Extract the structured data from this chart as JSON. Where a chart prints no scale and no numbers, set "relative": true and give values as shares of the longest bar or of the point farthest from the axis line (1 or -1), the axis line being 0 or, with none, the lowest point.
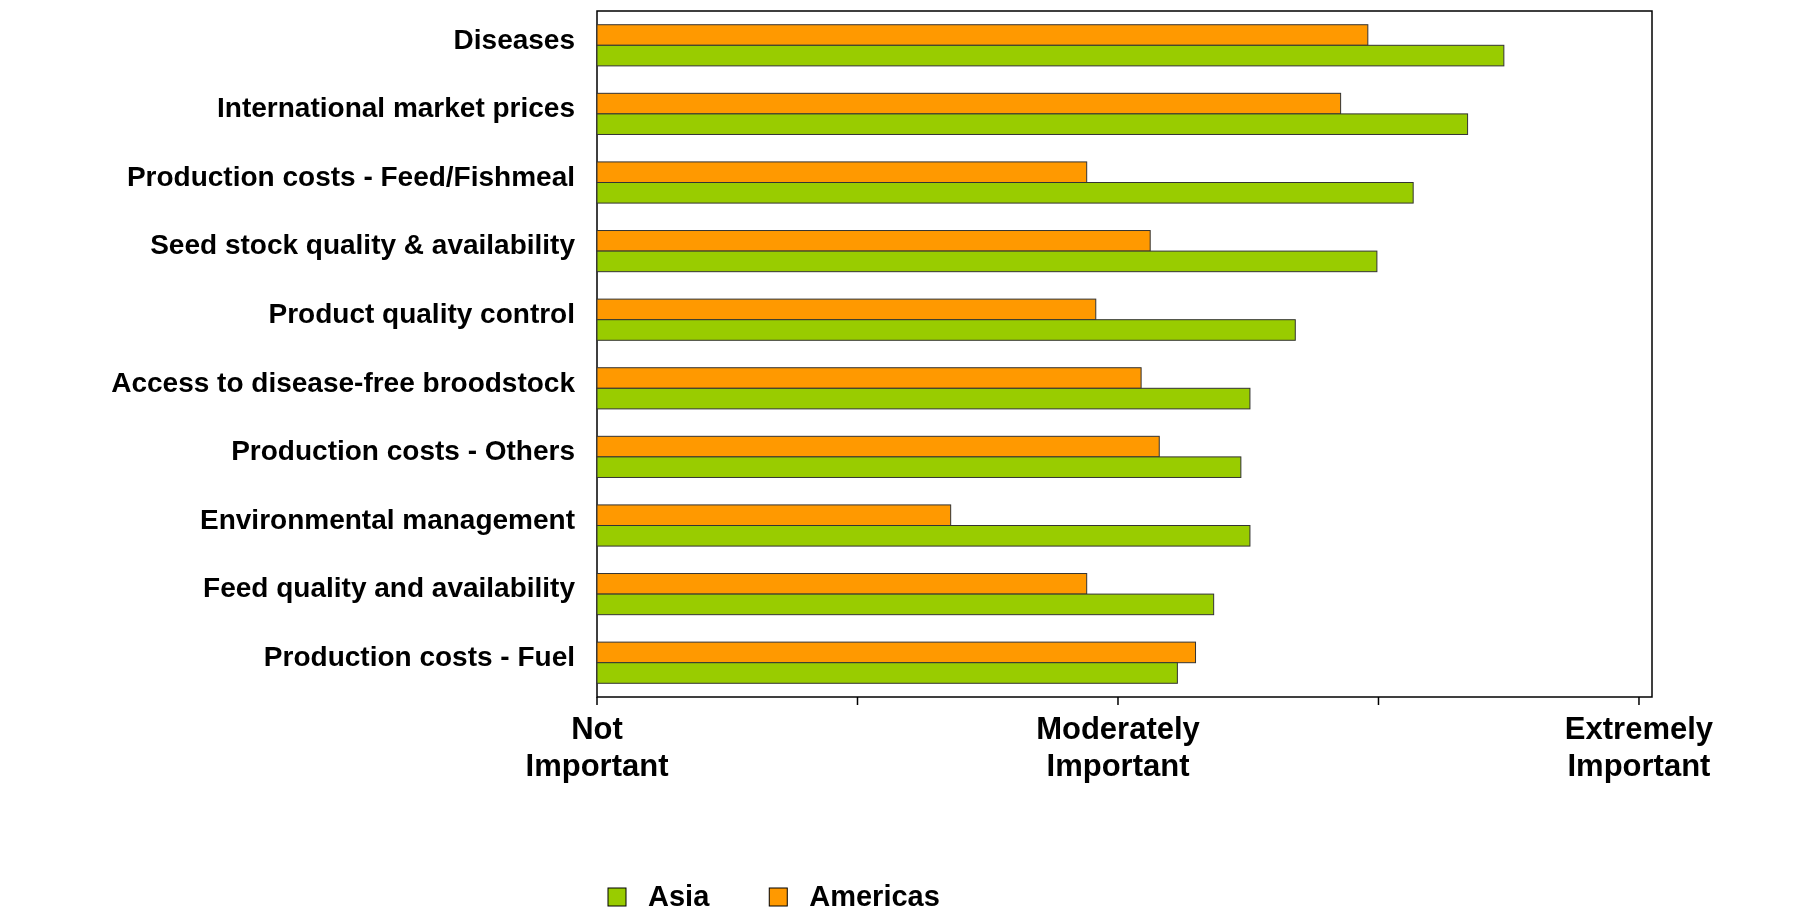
{
  "chart_data": {
    "type": "bar",
    "orientation": "horizontal",
    "relative": true,
    "categories": [
      "Diseases",
      "International market prices",
      "Production costs - Feed/Fishmeal",
      "Seed stock quality & availability",
      "Product quality control",
      "Access to disease-free broodstock",
      "Production costs - Others",
      "Environmental management",
      "Feed quality and availability",
      "Production costs - Fuel"
    ],
    "series": [
      {
        "name": "Americas",
        "color": "#ff9900",
        "values": [
          0.85,
          0.82,
          0.54,
          0.61,
          0.55,
          0.6,
          0.62,
          0.39,
          0.54,
          0.66
        ]
      },
      {
        "name": "Asia",
        "color": "#99cc00",
        "values": [
          1,
          0.96,
          0.9,
          0.86,
          0.77,
          0.72,
          0.71,
          0.72,
          0.68,
          0.64
        ]
      }
    ],
    "annotations": [
      "Not Important",
      "Moderately Important",
      "Extremely Important"
    ],
    "grid": false,
    "legend": "bottom"
  }
}
